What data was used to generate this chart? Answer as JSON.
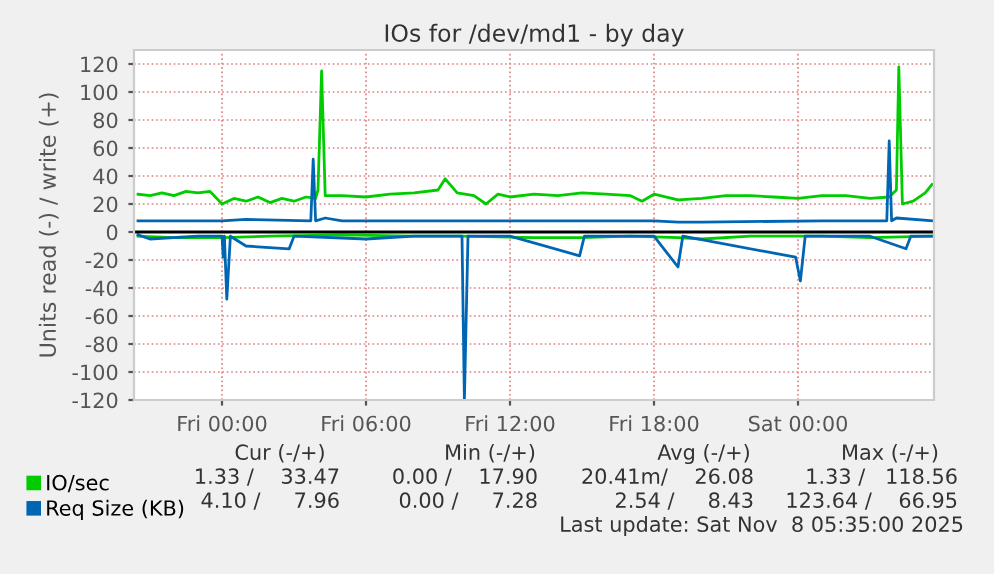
{
  "chart_data": {
    "type": "line",
    "title": "IOs for /dev/md1 - by day",
    "ylabel": "Units read (-) / write (+)",
    "xlim": [
      "2025-11-06T20:20",
      "2025-11-08T05:40"
    ],
    "xticks": [
      {
        "value": "2025-11-07T00:00",
        "label": "Fri 00:00"
      },
      {
        "value": "2025-11-07T06:00",
        "label": "Fri 06:00"
      },
      {
        "value": "2025-11-07T12:00",
        "label": "Fri 12:00"
      },
      {
        "value": "2025-11-07T18:00",
        "label": "Fri 18:00"
      },
      {
        "value": "2025-11-08T00:00",
        "label": "Sat 00:00"
      }
    ],
    "ylim": [
      -120,
      130
    ],
    "yticks": [
      -120,
      -100,
      -80,
      -60,
      -40,
      -20,
      0,
      20,
      40,
      60,
      80,
      100,
      120
    ],
    "grid": true,
    "legend": "bottom left",
    "ref_lines": [
      {
        "axis": "y",
        "value": 0,
        "color": "#000000"
      }
    ],
    "series": [
      {
        "name": "IO/sec",
        "color": "#00cc00",
        "x": [
          "2025-11-06T20:30",
          "2025-11-06T21:00",
          "2025-11-06T21:30",
          "2025-11-06T22:00",
          "2025-11-06T22:30",
          "2025-11-06T23:00",
          "2025-11-06T23:30",
          "2025-11-07T00:00",
          "2025-11-07T00:30",
          "2025-11-07T01:00",
          "2025-11-07T01:30",
          "2025-11-07T02:00",
          "2025-11-07T02:30",
          "2025-11-07T03:00",
          "2025-11-07T03:30",
          "2025-11-07T03:54",
          "2025-11-07T04:00",
          "2025-11-07T04:09",
          "2025-11-07T04:18",
          "2025-11-07T05:00",
          "2025-11-07T06:00",
          "2025-11-07T07:00",
          "2025-11-07T08:00",
          "2025-11-07T09:00",
          "2025-11-07T09:18",
          "2025-11-07T09:48",
          "2025-11-07T10:30",
          "2025-11-07T11:00",
          "2025-11-07T11:30",
          "2025-11-07T12:00",
          "2025-11-07T13:00",
          "2025-11-07T14:00",
          "2025-11-07T15:00",
          "2025-11-07T16:00",
          "2025-11-07T17:00",
          "2025-11-07T17:30",
          "2025-11-07T18:00",
          "2025-11-07T19:00",
          "2025-11-07T20:00",
          "2025-11-07T21:00",
          "2025-11-07T22:00",
          "2025-11-07T23:00",
          "2025-11-08T00:00",
          "2025-11-08T01:00",
          "2025-11-08T02:00",
          "2025-11-08T03:00",
          "2025-11-08T03:48",
          "2025-11-08T04:06",
          "2025-11-08T04:12",
          "2025-11-08T04:21",
          "2025-11-08T04:48",
          "2025-11-08T05:18",
          "2025-11-08T05:35"
        ],
        "values": [
          27,
          26,
          28,
          26,
          29,
          28,
          29,
          20,
          24,
          22,
          25,
          21,
          24,
          22,
          25,
          24,
          30,
          115,
          26,
          26,
          25,
          27,
          28,
          30,
          38,
          28,
          26,
          20,
          27,
          25,
          27,
          26,
          28,
          27,
          26,
          22,
          27,
          23,
          24,
          26,
          26,
          25,
          24,
          26,
          26,
          24,
          25,
          30,
          118,
          20,
          22,
          28,
          34
        ]
      },
      {
        "color": "#00cc00",
        "x": [
          "2025-11-06T20:30",
          "2025-11-06T22:00",
          "2025-11-07T00:00",
          "2025-11-07T02:00",
          "2025-11-07T05:00",
          "2025-11-07T08:00",
          "2025-11-07T10:00",
          "2025-11-07T13:00",
          "2025-11-07T15:00",
          "2025-11-07T17:00",
          "2025-11-07T19:00",
          "2025-11-07T20:00",
          "2025-11-07T22:00",
          "2025-11-08T01:00",
          "2025-11-08T03:00",
          "2025-11-08T05:35"
        ],
        "values": [
          -3,
          -4,
          -4,
          -3,
          -2,
          -3,
          -3,
          -4,
          -4,
          -3,
          -4,
          -5,
          -3,
          -3,
          -4,
          -3
        ]
      },
      {
        "name": "Req Size (KB)",
        "color": "#0066b3",
        "x": [
          "2025-11-06T20:30",
          "2025-11-07T00:00",
          "2025-11-07T01:00",
          "2025-11-07T03:42",
          "2025-11-07T03:48",
          "2025-11-07T03:54",
          "2025-11-07T04:18",
          "2025-11-07T05:00",
          "2025-11-07T10:00",
          "2025-11-07T12:00",
          "2025-11-07T15:00",
          "2025-11-07T18:00",
          "2025-11-07T19:00",
          "2025-11-07T20:00",
          "2025-11-08T01:00",
          "2025-11-08T03:42",
          "2025-11-08T03:48",
          "2025-11-08T03:54",
          "2025-11-08T04:06",
          "2025-11-08T05:35"
        ],
        "values": [
          8,
          8,
          9,
          8,
          52,
          8,
          10,
          8,
          8,
          8,
          8,
          8,
          7,
          7,
          8,
          8,
          65,
          8,
          10,
          8
        ]
      },
      {
        "color": "#0066b3",
        "x": [
          "2025-11-06T20:30",
          "2025-11-06T21:00",
          "2025-11-06T23:00",
          "2025-11-07T00:00",
          "2025-11-07T00:03",
          "2025-11-07T00:06",
          "2025-11-07T00:12",
          "2025-11-07T00:21",
          "2025-11-07T01:00",
          "2025-11-07T02:48",
          "2025-11-07T03:00",
          "2025-11-07T06:00",
          "2025-11-07T08:00",
          "2025-11-07T10:00",
          "2025-11-07T10:06",
          "2025-11-07T10:15",
          "2025-11-07T12:00",
          "2025-11-07T14:54",
          "2025-11-07T15:06",
          "2025-11-07T18:00",
          "2025-11-07T19:00",
          "2025-11-07T19:12",
          "2025-11-07T23:54",
          "2025-11-08T00:06",
          "2025-11-08T00:18",
          "2025-11-08T03:00",
          "2025-11-08T04:30",
          "2025-11-08T04:42",
          "2025-11-08T05:35"
        ],
        "values": [
          -2,
          -5,
          -3,
          -3,
          -18,
          -3,
          -48,
          -3,
          -10,
          -12,
          -3,
          -5,
          -3,
          -3,
          -120,
          -3,
          -3,
          -17,
          -3,
          -3,
          -25,
          -3,
          -18,
          -35,
          -3,
          -3,
          -12,
          -3,
          -3
        ]
      }
    ],
    "annotations": [
      "Cur (-/+)",
      "Min (-/+)",
      "Avg (-/+)",
      "Max (-/+)",
      "1.33 /    33.47",
      "0.00 /    17.90",
      "20.41m/    26.08",
      "1.33 /   118.56",
      "4.10 /     7.96",
      "0.00 /     7.28",
      "2.54 /     8.43",
      "123.64 /    66.95",
      "Last update: Sat Nov  8 05:35:00 2025"
    ]
  }
}
